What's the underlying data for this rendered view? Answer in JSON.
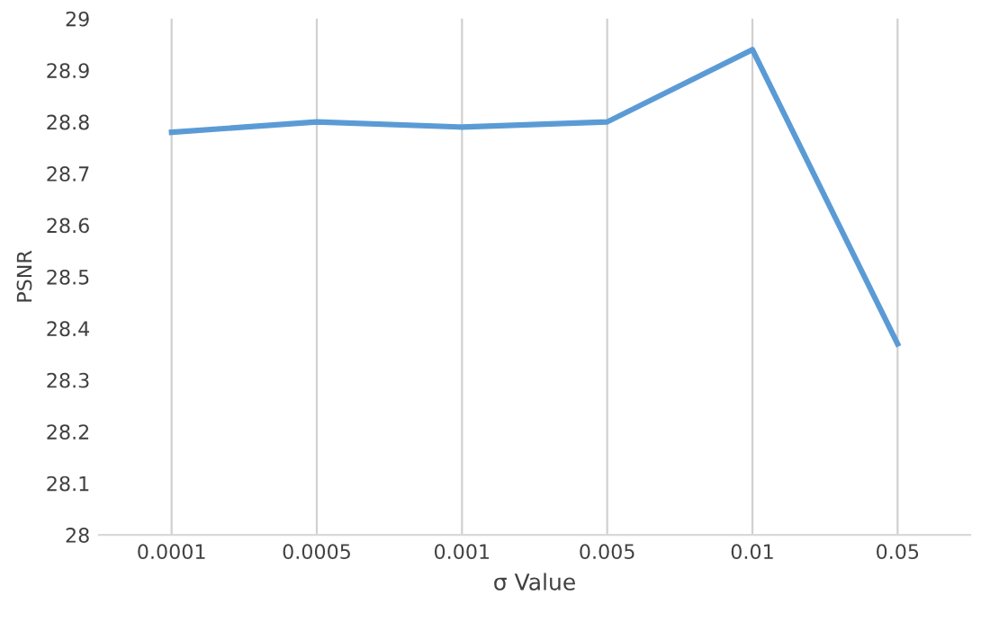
{
  "chart_data": {
    "type": "line",
    "xlabel": "σ Value",
    "ylabel": "PSNR",
    "categories": [
      "0.0001",
      "0.0005",
      "0.001",
      "0.005",
      "0.01",
      "0.05"
    ],
    "series": [
      {
        "color": "#5b9bd5",
        "values": [
          28.78,
          28.8,
          28.79,
          28.8,
          28.94,
          28.37
        ]
      }
    ],
    "ylim": [
      28,
      29
    ],
    "yticks": [
      28,
      28.1,
      28.2,
      28.3,
      28.4,
      28.5,
      28.6,
      28.7,
      28.8,
      28.9,
      29
    ],
    "grid": "x",
    "legend": false,
    "marker": "none",
    "line_style": "solid"
  }
}
